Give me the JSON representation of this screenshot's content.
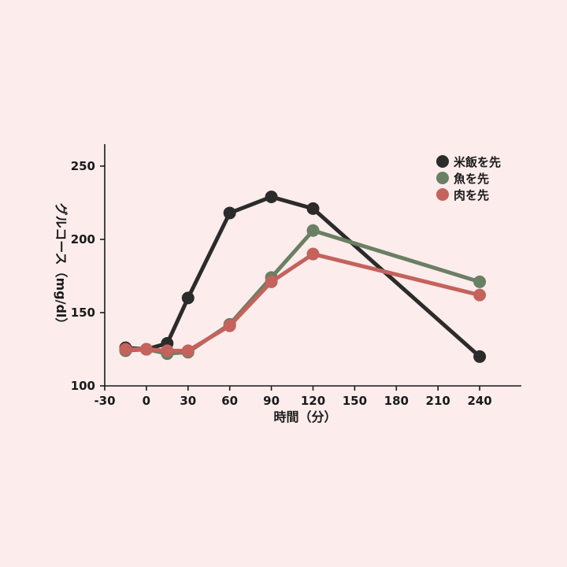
{
  "chart_data": {
    "type": "line",
    "xlabel": "時間（分）",
    "ylabel": "グルコース（mg/dl）",
    "x_ticks": [
      -30,
      0,
      30,
      60,
      90,
      120,
      150,
      180,
      210,
      240
    ],
    "y_ticks": [
      100,
      150,
      200,
      250
    ],
    "xlim": [
      -30,
      270
    ],
    "ylim": [
      100,
      265
    ],
    "legend_position": "top-right",
    "grid": false,
    "series": [
      {
        "name": "米飯を先",
        "color": "#2b2b2b",
        "x": [
          -15,
          0,
          15,
          30,
          60,
          90,
          120,
          240
        ],
        "y": [
          126,
          125,
          129,
          160,
          218,
          229,
          221,
          120
        ]
      },
      {
        "name": "魚を先",
        "color": "#6a7f63",
        "x": [
          -15,
          0,
          15,
          30,
          60,
          90,
          120,
          240
        ],
        "y": [
          124,
          125,
          122,
          123,
          142,
          174,
          206,
          171
        ]
      },
      {
        "name": "肉を先",
        "color": "#c4625c",
        "x": [
          -15,
          0,
          15,
          30,
          60,
          90,
          120,
          240
        ],
        "y": [
          125,
          125,
          124,
          124,
          141,
          171,
          190,
          162
        ]
      }
    ]
  }
}
